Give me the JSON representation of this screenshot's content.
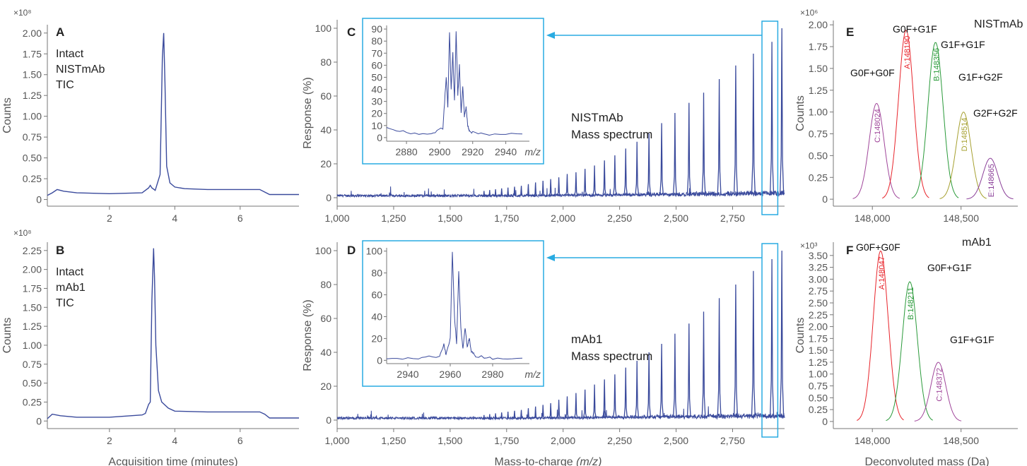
{
  "figure": {
    "colors": {
      "trace": "#3a4a9c",
      "inset_box": "#29abe2",
      "axis": "#777777",
      "label": "#555555",
      "red": "#e8242b",
      "green": "#2a9a3a",
      "magenta": "#a0469a",
      "olive": "#a6a030",
      "purple": "#8a3e98"
    }
  },
  "chart_data": [
    {
      "panel": "A",
      "type": "line",
      "annotation": [
        "Intact",
        "NISTmAb",
        "TIC"
      ],
      "ylabel": "Counts",
      "xlabel": "",
      "y_multiplier": "×10⁸",
      "xlim": [
        0.1,
        7.8
      ],
      "ylim": [
        -0.08,
        2.1
      ],
      "xticks": [
        "2",
        "4",
        "6"
      ],
      "yticks": [
        "0",
        "0.25",
        "0.50",
        "0.75",
        "1.00",
        "1.25",
        "1.50",
        "1.75",
        "2.00"
      ],
      "series": [
        {
          "x": [
            0.1,
            0.25,
            0.4,
            0.6,
            1.0,
            2.0,
            3.0,
            3.2,
            3.25,
            3.3,
            3.4,
            3.55,
            3.62,
            3.66,
            3.7,
            3.75,
            3.85,
            4.0,
            4.3,
            5.0,
            6.0,
            6.6,
            6.75,
            6.9,
            7.8
          ],
          "y": [
            0.05,
            0.08,
            0.12,
            0.1,
            0.08,
            0.07,
            0.08,
            0.14,
            0.17,
            0.14,
            0.11,
            0.3,
            1.7,
            2.0,
            1.4,
            0.4,
            0.2,
            0.15,
            0.13,
            0.12,
            0.12,
            0.12,
            0.09,
            0.06,
            0.06
          ]
        }
      ]
    },
    {
      "panel": "B",
      "type": "line",
      "annotation": [
        "Intact",
        "mAb1",
        "TIC"
      ],
      "ylabel": "Counts",
      "xlabel": "Acquisition time (minutes)",
      "y_multiplier": "×10⁸",
      "xlim": [
        0.1,
        7.8
      ],
      "ylim": [
        -0.1,
        2.36
      ],
      "xticks": [
        "2",
        "4",
        "6"
      ],
      "yticks": [
        "0",
        "0.25",
        "0.50",
        "0.75",
        "1.00",
        "1.25",
        "1.50",
        "1.75",
        "2.00",
        "2.25"
      ],
      "series": [
        {
          "x": [
            0.1,
            0.25,
            0.5,
            1.0,
            2.0,
            3.0,
            3.1,
            3.2,
            3.25,
            3.3,
            3.35,
            3.38,
            3.42,
            3.5,
            3.6,
            3.8,
            4.0,
            5.0,
            6.0,
            6.6,
            6.75,
            6.9,
            7.8
          ],
          "y": [
            0.03,
            0.09,
            0.07,
            0.05,
            0.05,
            0.08,
            0.1,
            0.22,
            0.25,
            1.6,
            2.28,
            1.9,
            1.0,
            0.4,
            0.25,
            0.17,
            0.13,
            0.12,
            0.12,
            0.12,
            0.09,
            0.04,
            0.04
          ]
        }
      ]
    },
    {
      "panel": "C",
      "type": "line",
      "annotation": [
        "NISTmAb",
        "Mass spectrum"
      ],
      "ylabel": "Response (%)",
      "xlabel": "",
      "xlim": [
        1000,
        2980
      ],
      "ylim": [
        -5,
        105
      ],
      "xticks": [
        "1,000",
        "1,250",
        "1,500",
        "1,750",
        "2,000",
        "2,250",
        "2,500",
        "2,750"
      ],
      "yticks": [
        "0",
        "20",
        "40",
        "60",
        "80",
        "100"
      ],
      "peaks": {
        "mz": [
          1650,
          1675,
          1701,
          1728,
          1756,
          1785,
          1815,
          1846,
          1878,
          1911,
          1945,
          1981,
          2018,
          2057,
          2097,
          2139,
          2183,
          2229,
          2277,
          2327,
          2380,
          2436,
          2495,
          2557,
          2622,
          2691,
          2764,
          2842,
          2924,
          2968
        ],
        "response": [
          4,
          4.5,
          5,
          5.5,
          6,
          6.5,
          7,
          8,
          9,
          10,
          11,
          12,
          14,
          15,
          17,
          19,
          22,
          25,
          29,
          33,
          38,
          44,
          50,
          56,
          62,
          70,
          78,
          85,
          92,
          100
        ]
      },
      "inset": {
        "xticks": [
          "2880",
          "2900",
          "2920",
          "2940"
        ],
        "yticks": [
          "0",
          "10",
          "20",
          "30",
          "40",
          "50",
          "60",
          "70",
          "80",
          "90"
        ],
        "xlabel": "m/z",
        "xlim": [
          2868,
          2950
        ],
        "ylim": [
          -3,
          93
        ],
        "series": [
          {
            "x": [
              2868,
              2880,
              2895,
              2902,
              2904,
              2905,
              2906,
              2907,
              2908,
              2909,
              2910,
              2911,
              2912,
              2913,
              2914,
              2915,
              2916,
              2917,
              2918,
              2920,
              2930,
              2950
            ],
            "y": [
              8,
              4,
              3,
              8,
              50,
              25,
              88,
              40,
              70,
              30,
              89,
              35,
              60,
              20,
              42,
              18,
              25,
              10,
              6,
              4,
              3,
              3
            ]
          }
        ]
      }
    },
    {
      "panel": "D",
      "type": "line",
      "annotation": [
        "mAb1",
        "Mass spectrum"
      ],
      "ylabel": "Response (%)",
      "xlabel": "Mass-to-charge",
      "xlabel_italic": "(m/z)",
      "xlim": [
        1000,
        2980
      ],
      "ylim": [
        -5,
        105
      ],
      "xticks": [
        "1,000",
        "1,250",
        "1,500",
        "1,750",
        "2,000",
        "2,250",
        "2,500",
        "2,750"
      ],
      "yticks": [
        "0",
        "20",
        "40",
        "60",
        "80",
        "100"
      ],
      "peaks": {
        "mz": [
          1650,
          1675,
          1701,
          1728,
          1756,
          1785,
          1815,
          1846,
          1878,
          1911,
          1945,
          1981,
          2018,
          2057,
          2097,
          2139,
          2183,
          2229,
          2277,
          2327,
          2380,
          2436,
          2495,
          2557,
          2622,
          2691,
          2764,
          2842,
          2924,
          2968
        ],
        "response": [
          3,
          3.5,
          4,
          4.5,
          5,
          5.5,
          6,
          7,
          8,
          9,
          10,
          12,
          14,
          16,
          18,
          21,
          24,
          27,
          31,
          35,
          40,
          45,
          51,
          57,
          64,
          72,
          80,
          88,
          95,
          100
        ]
      },
      "inset": {
        "xticks": [
          "2940",
          "2960",
          "2980"
        ],
        "yticks": [
          "0",
          "20",
          "40",
          "60",
          "80",
          "100"
        ],
        "xlabel": "m/z",
        "xlim": [
          2930,
          2994
        ],
        "ylim": [
          -3,
          103
        ],
        "series": [
          {
            "x": [
              2930,
              2945,
              2955,
              2957,
              2958,
              2960,
              2961,
              2962,
              2963,
              2964,
              2965,
              2966,
              2967,
              2968,
              2969,
              2970,
              2972,
              2980,
              2994
            ],
            "y": [
              2,
              2,
              4,
              15,
              5,
              20,
              99,
              40,
              15,
              82,
              30,
              10,
              30,
              12,
              20,
              8,
              4,
              2,
              2
            ]
          }
        ]
      }
    },
    {
      "panel": "E",
      "type": "line",
      "title": "NISTmAb",
      "ylabel": "Counts",
      "xlabel": "",
      "y_multiplier": "×10⁶",
      "xlim": [
        147780,
        148820
      ],
      "ylim": [
        -0.08,
        2.05
      ],
      "xticks": [
        "148,000",
        "148,500"
      ],
      "yticks": [
        "0",
        "0.25",
        "0.50",
        "0.75",
        "1.00",
        "1.25",
        "1.50",
        "1.75",
        "2.00"
      ],
      "peaks": [
        {
          "center": 148024,
          "height": 1.1,
          "color": "#a0469a",
          "mass_label": "C:148024",
          "glycan": "G0F+G0F"
        },
        {
          "center": 148190,
          "height": 1.94,
          "color": "#e8242b",
          "mass_label": "A:148190",
          "glycan": "G0F+G1F"
        },
        {
          "center": 148356,
          "height": 1.8,
          "color": "#2a9a3a",
          "mass_label": "B:148356",
          "glycan": "G1F+G1F"
        },
        {
          "center": 148514,
          "height": 1.0,
          "color": "#a6a030",
          "mass_label": "D:148514",
          "glycan": "G1F+G2F"
        },
        {
          "center": 148665,
          "height": 0.47,
          "color": "#8a3e98",
          "mass_label": "E:148665",
          "glycan": "G2F+G2F"
        }
      ]
    },
    {
      "panel": "F",
      "type": "line",
      "title": "mAb1",
      "ylabel": "Counts",
      "xlabel": "Deconvoluted mass (Da)",
      "y_multiplier": "×10³",
      "xlim": [
        147780,
        148820
      ],
      "ylim": [
        -0.15,
        3.78
      ],
      "xticks": [
        "148,000",
        "148,500"
      ],
      "yticks": [
        "0",
        "0.25",
        "0.50",
        "0.75",
        "1.00",
        "1.25",
        "1.50",
        "1.75",
        "2.00",
        "2.25",
        "2.50",
        "2.75",
        "3.00",
        "3.25",
        "3.50"
      ],
      "peaks": [
        {
          "center": 148047,
          "height": 3.6,
          "color": "#e8242b",
          "mass_label": "A:148047",
          "glycan": "G0F+G0F"
        },
        {
          "center": 148211,
          "height": 2.95,
          "color": "#2a9a3a",
          "mass_label": "B:148211",
          "glycan": "G0F+G1F"
        },
        {
          "center": 148372,
          "height": 1.25,
          "color": "#a0469a",
          "mass_label": "C:148372",
          "glycan": "G1F+G1F"
        }
      ]
    }
  ]
}
